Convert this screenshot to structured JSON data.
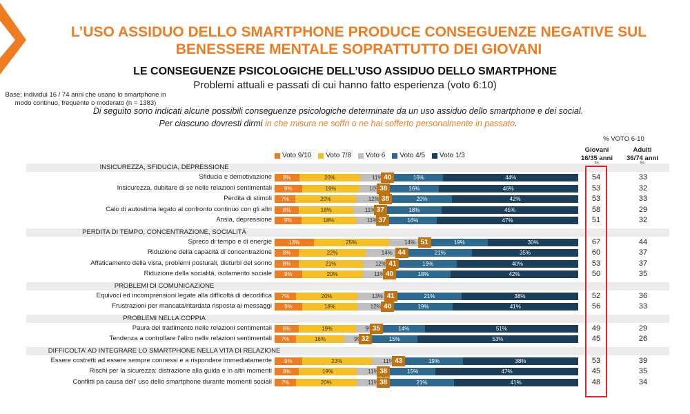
{
  "header": {
    "title_line1": "L’USO ASSIDUO DELLO SMARTPHONE PRODUCE CONSEGUENZE NEGATIVE SUL",
    "title_line2": "BENESSERE MENTALE SOPRATTUTTO DEI GIOVANI",
    "subtitle": "LE CONSEGUENZE PSICOLOGICHE DELL’USO ASSIDUO DELLO SMARTPHONE",
    "subtitle2": "Problemi attuali e passati di cui hanno fatto esperienza (voto 6:10)",
    "base_line1": "Base: individui 16 / 74 anni che usano lo smartphone in",
    "base_line2": "modo continuo, frequente  o moderato (n = 1383)",
    "instruction1": "Di seguito sono indicati alcune possibili conseguenze psicologiche determinate da un uso assiduo dello smartphone e dei social.",
    "instruction2_pre": "Per ciascuno dovresti dirmi ",
    "instruction2_hl": "in che misura ne soffri o ne hai sofferto personalmente in passato",
    "instruction2_post": "."
  },
  "columns": {
    "voto_label": "% VOTO 6-10",
    "giovani_line1": "Giovani",
    "giovani_line2": "16/35 anni",
    "adulti_line1": "Adulti",
    "adulti_line2": "36/74 anni",
    "pct_symbol": "%"
  },
  "colors": {
    "voto9_10": "#ee7d22",
    "voto7_8": "#f5bf25",
    "voto6": "#bfbfbf",
    "voto4_5": "#2e6a8f",
    "voto1_3": "#1c3f59",
    "total_box": "#c0720f",
    "highlight": "#e3232b"
  },
  "chart_data": {
    "type": "bar",
    "orientation": "horizontal-stacked",
    "legend": [
      "Voto 9/10",
      "Voto 7/8",
      "Voto 6",
      "Voto 4/5",
      "Voto 1/3"
    ],
    "sections": [
      {
        "title": "INSICUREZZA, SFIDUCIA, DEPRESSIONE",
        "rows": [
          {
            "label": "Sfiducia e demotivazione",
            "values": [
              8,
              20,
              11,
              16,
              44
            ],
            "total": 40,
            "giovani": 54,
            "adulti": 33
          },
          {
            "label": "Insicurezza, dubitare di se  nelle relazioni sentimentali",
            "values": [
              9,
              19,
              10,
              16,
              46
            ],
            "total": 38,
            "giovani": 53,
            "adulti": 32
          },
          {
            "label": "Perdita di stimoli",
            "values": [
              7,
              20,
              12,
              20,
              42
            ],
            "total": 38,
            "giovani": 53,
            "adulti": 33
          },
          {
            "label": "Calo di autostima legato al confronto continuo con gli altri",
            "values": [
              8,
              18,
              11,
              18,
              45
            ],
            "total": 37,
            "giovani": 58,
            "adulti": 29
          },
          {
            "label": "Ansia, depressione",
            "values": [
              9,
              18,
              11,
              16,
              47
            ],
            "total": 37,
            "giovani": 51,
            "adulti": 32
          }
        ]
      },
      {
        "title": "PERDITA DI TEMPO, CONCENTRAZIONE, SOCIALITÀ",
        "rows": [
          {
            "label": "Spreco di tempo e di energie",
            "values": [
              13,
              25,
              14,
              19,
              30
            ],
            "total": 51,
            "giovani": 67,
            "adulti": 44
          },
          {
            "label": "Riduzione della capacità di concentrazione",
            "values": [
              8,
              22,
              14,
              21,
              35
            ],
            "total": 44,
            "giovani": 60,
            "adulti": 37
          },
          {
            "label": "Affaticamento della vista, problemi posturali, disturbi del sonno",
            "values": [
              8,
              21,
              12,
              19,
              40
            ],
            "total": 41,
            "giovani": 53,
            "adulti": 37
          },
          {
            "label": "Riduzione della socialità, isolamento sociale",
            "values": [
              9,
              20,
              11,
              18,
              42
            ],
            "total": 40,
            "giovani": 50,
            "adulti": 35
          }
        ]
      },
      {
        "title": "PROBLEMI DI COMUNICAZIONE",
        "rows": [
          {
            "label": "Equivoci ed incomprensioni legate alla difficoltà di decodifica",
            "values": [
              7,
              20,
              13,
              21,
              38
            ],
            "total": 41,
            "giovani": 52,
            "adulti": 36
          },
          {
            "label": "Frustrazioni per mancata/ritardata risposta ai messaggi",
            "values": [
              9,
              18,
              12,
              19,
              41
            ],
            "total": 40,
            "giovani": 56,
            "adulti": 33
          }
        ]
      },
      {
        "title": "PROBLEMI NELLA COPPIA",
        "rows": [
          {
            "label": "Paura del tradimento nelle relazioni sentimentali",
            "values": [
              8,
              19,
              9,
              14,
              51
            ],
            "total": 35,
            "giovani": 49,
            "adulti": 29
          },
          {
            "label": "Tendenza a controllare l’altro nelle relazioni sentimentali",
            "values": [
              7,
              16,
              9,
              15,
              53
            ],
            "total": 32,
            "giovani": 45,
            "adulti": 26
          }
        ]
      },
      {
        "title": "DIFFICOLTA’ AD INTEGRARE LO SMARTPHONE NELLA VITA DI RELAZIONE",
        "rows": [
          {
            "label": "Essere costretti ad essere sempre connessi e a rispondere immediatamente",
            "values": [
              9,
              23,
              11,
              19,
              38
            ],
            "total": 43,
            "giovani": 53,
            "adulti": 39
          },
          {
            "label": "Rischi per la sicurezza: distrazione alla guida e in altri momenti",
            "values": [
              8,
              19,
              11,
              15,
              47
            ],
            "total": 38,
            "giovani": 45,
            "adulti": 35
          },
          {
            "label": "Conflitti pa causa dell' uso dello smartphone durante momenti sociali",
            "values": [
              7,
              20,
              11,
              21,
              41
            ],
            "total": 38,
            "giovani": 48,
            "adulti": 34
          }
        ]
      }
    ]
  }
}
